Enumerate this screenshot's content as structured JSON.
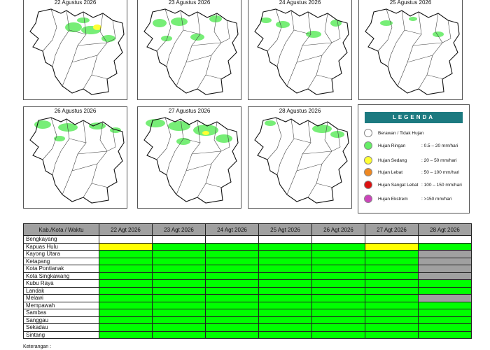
{
  "maps": [
    {
      "date": "22 Agustus 2026"
    },
    {
      "date": "23 Agustus 2026"
    },
    {
      "date": "24 Agustus 2026"
    },
    {
      "date": "25 Agustus 2026"
    },
    {
      "date": "26 Agustus 2026"
    },
    {
      "date": "27 Agustus 2026"
    },
    {
      "date": "28 Agustus 2026"
    }
  ],
  "legend": {
    "title": "LEGENDA",
    "items": [
      {
        "label": "Berawan / Tidak Hujan",
        "range": "",
        "color": "#ffffff"
      },
      {
        "label": "Hujan Ringan",
        "range": ": 0.5 – 20 mm/hari",
        "color": "#66ee66"
      },
      {
        "label": "Hujan Sedang",
        "range": ": 20 – 50 mm/hari",
        "color": "#ffff33"
      },
      {
        "label": "Hujan Lebat",
        "range": ": 50 – 100 mm/hari",
        "color": "#ee8822"
      },
      {
        "label": "Hujan Sangat Lebat",
        "range": ": 100 – 150 mm/hari",
        "color": "#dd1111"
      },
      {
        "label": "Hujan Ekstrem",
        "range": ": >150 mm/hari",
        "color": "#cc44bb"
      }
    ]
  },
  "table": {
    "header_first": "Kab./Kota / Waktu",
    "dates": [
      "22 Agt 2026",
      "23 Agt 2026",
      "24 Agt 2026",
      "25 Agt 2026",
      "26 Agt 2026",
      "27 Agt 2026",
      "28 Agt 2026"
    ],
    "colors": {
      "none": "#ffffff",
      "ringan": "#00ff00",
      "sedang": "#ffff00",
      "nodata": "#a0a0a0"
    },
    "rows": [
      {
        "name": "Bengkayang",
        "cells": [
          "none",
          "none",
          "none",
          "none",
          "none",
          "none",
          "none"
        ]
      },
      {
        "name": "Kapuas Hulu",
        "cells": [
          "sedang",
          "ringan",
          "ringan",
          "ringan",
          "ringan",
          "sedang",
          "ringan"
        ]
      },
      {
        "name": "Kayong Utara",
        "cells": [
          "ringan",
          "ringan",
          "ringan",
          "ringan",
          "ringan",
          "ringan",
          "nodata"
        ]
      },
      {
        "name": "Ketapang",
        "cells": [
          "ringan",
          "ringan",
          "ringan",
          "ringan",
          "ringan",
          "ringan",
          "nodata"
        ]
      },
      {
        "name": "Kota Pontianak",
        "cells": [
          "ringan",
          "ringan",
          "ringan",
          "ringan",
          "ringan",
          "ringan",
          "nodata"
        ]
      },
      {
        "name": "Kota Singkawang",
        "cells": [
          "ringan",
          "ringan",
          "ringan",
          "ringan",
          "ringan",
          "ringan",
          "nodata"
        ]
      },
      {
        "name": "Kubu Raya",
        "cells": [
          "ringan",
          "ringan",
          "ringan",
          "ringan",
          "ringan",
          "ringan",
          "ringan"
        ]
      },
      {
        "name": "Landak",
        "cells": [
          "ringan",
          "ringan",
          "ringan",
          "ringan",
          "ringan",
          "ringan",
          "ringan"
        ]
      },
      {
        "name": "Melawi",
        "cells": [
          "ringan",
          "ringan",
          "ringan",
          "ringan",
          "ringan",
          "ringan",
          "nodata"
        ]
      },
      {
        "name": "Mempawah",
        "cells": [
          "ringan",
          "ringan",
          "ringan",
          "ringan",
          "ringan",
          "ringan",
          "ringan"
        ]
      },
      {
        "name": "Sambas",
        "cells": [
          "ringan",
          "ringan",
          "ringan",
          "ringan",
          "ringan",
          "ringan",
          "ringan"
        ]
      },
      {
        "name": "Sanggau",
        "cells": [
          "ringan",
          "ringan",
          "ringan",
          "ringan",
          "ringan",
          "ringan",
          "ringan"
        ]
      },
      {
        "name": "Sekadau",
        "cells": [
          "ringan",
          "ringan",
          "ringan",
          "ringan",
          "ringan",
          "ringan",
          "ringan"
        ]
      },
      {
        "name": "Sintang",
        "cells": [
          "ringan",
          "ringan",
          "ringan",
          "ringan",
          "ringan",
          "ringan",
          "ringan"
        ]
      }
    ]
  },
  "footnote": "Keterangan :"
}
